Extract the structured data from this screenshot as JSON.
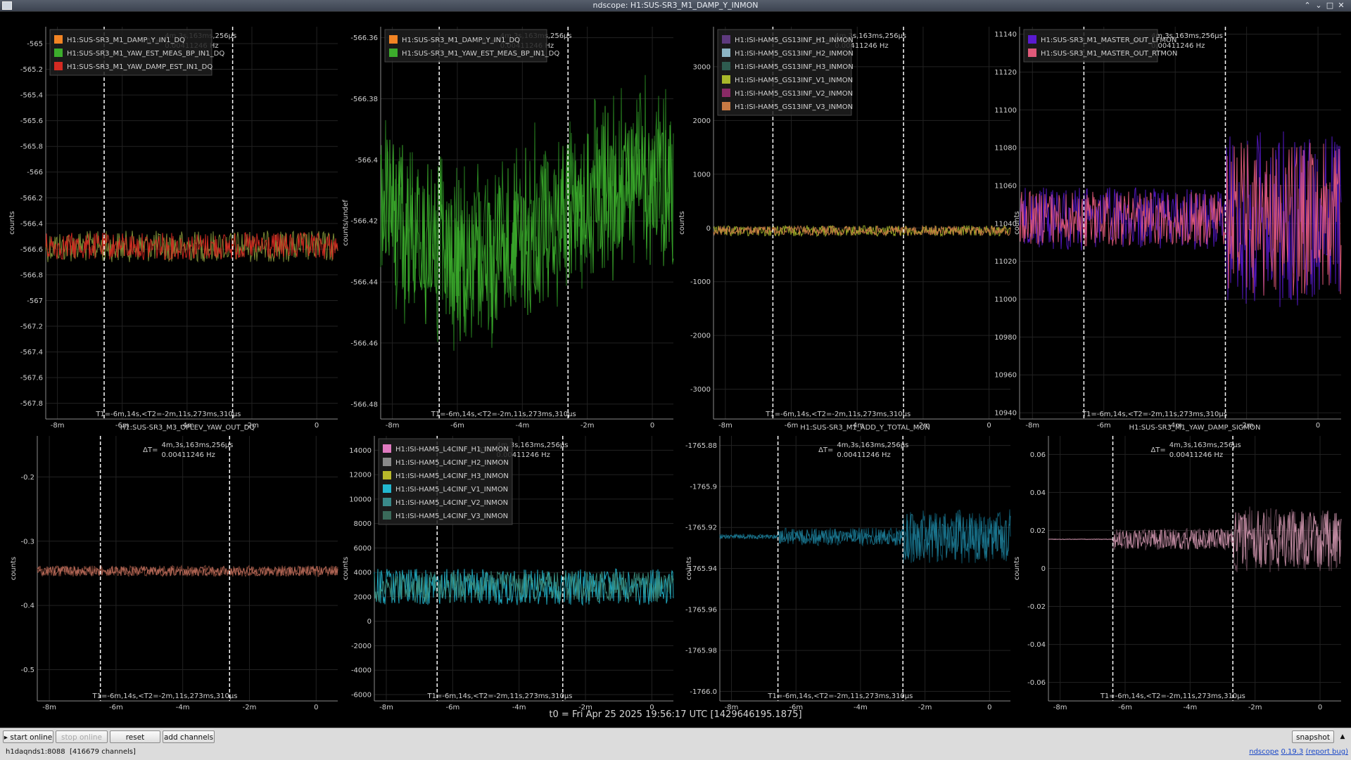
{
  "window": {
    "title": "ndscope: H1:SUS-SR3_M1_DAMP_Y_INMON"
  },
  "window_buttons": [
    "⌃",
    "⌄",
    "□",
    "✕"
  ],
  "common": {
    "x_ticks": [
      "-8m",
      "-6m",
      "-4m",
      "-2m",
      "0"
    ],
    "delta_label": "ΔT=",
    "delta_time": "4m,3s,163ms,256μs",
    "delta_freq": "0.00411246 Hz",
    "cursor_readout": "T1=-6m,14s,<T2=-2m,11s,273ms,310μs"
  },
  "plots": [
    {
      "title": "",
      "ylabel": "counts",
      "y_ticks": [
        "-565",
        "-565.2",
        "-565.4",
        "-565.6",
        "-565.8",
        "-566",
        "-566.2",
        "-566.4",
        "-566.6",
        "-566.8",
        "-567",
        "-567.2",
        "-567.4",
        "-567.6",
        "-567.8"
      ],
      "legend": [
        {
          "name": "H1:SUS-SR3_M1_DAMP_Y_IN1_DQ",
          "color": "#f28424"
        },
        {
          "name": "H1:SUS-SR3_M1_YAW_EST_MEAS_BP_IN1_DQ",
          "color": "#3cac2c"
        },
        {
          "name": "H1:SUS-SR3_M1_YAW_DAMP_EST_IN1_DQ",
          "color": "#d42a22"
        }
      ]
    },
    {
      "title": "",
      "ylabel": "counts/undef",
      "y_ticks": [
        "-566.36",
        "-566.38",
        "-566.4",
        "-566.42",
        "-566.44",
        "-566.46",
        "-566.48"
      ],
      "legend": [
        {
          "name": "H1:SUS-SR3_M1_DAMP_Y_IN1_DQ",
          "color": "#f28424"
        },
        {
          "name": "H1:SUS-SR3_M1_YAW_EST_MEAS_BP_IN1_DQ",
          "color": "#3cac2c"
        }
      ]
    },
    {
      "title": "",
      "ylabel": "counts",
      "y_ticks": [
        "3000",
        "2000",
        "1000",
        "0",
        "-1000",
        "-2000",
        "-3000"
      ],
      "legend": [
        {
          "name": "H1:ISI-HAM5_GS13INF_H1_INMON",
          "color": "#5e3a7e"
        },
        {
          "name": "H1:ISI-HAM5_GS13INF_H2_INMON",
          "color": "#8cb4c4"
        },
        {
          "name": "H1:ISI-HAM5_GS13INF_H3_INMON",
          "color": "#2e5c50"
        },
        {
          "name": "H1:ISI-HAM5_GS13INF_V1_INMON",
          "color": "#a8b82a"
        },
        {
          "name": "H1:ISI-HAM5_GS13INF_V2_INMON",
          "color": "#8a2a66"
        },
        {
          "name": "H1:ISI-HAM5_GS13INF_V3_INMON",
          "color": "#c87a44"
        }
      ]
    },
    {
      "title": "",
      "ylabel": "counts",
      "y_ticks": [
        "11140",
        "11120",
        "11100",
        "11080",
        "11060",
        "11040",
        "11020",
        "11000",
        "10980",
        "10960",
        "10940"
      ],
      "legend": [
        {
          "name": "H1:SUS-SR3_M1_MASTER_OUT_LFMON",
          "color": "#5a1ad0"
        },
        {
          "name": "H1:SUS-SR3_M1_MASTER_OUT_RTMON",
          "color": "#e05a7a"
        }
      ]
    },
    {
      "title": "H1:SUS-SR3_M3_OPLEV_YAW_OUT_DQ",
      "ylabel": "counts",
      "y_ticks": [
        "-0.2",
        "-0.3",
        "-0.4",
        "-0.5"
      ],
      "legend": []
    },
    {
      "title": "",
      "ylabel": "counts",
      "y_ticks": [
        "14000",
        "12000",
        "10000",
        "8000",
        "6000",
        "4000",
        "2000",
        "0",
        "-2000",
        "-4000",
        "-6000"
      ],
      "legend": [
        {
          "name": "H1:ISI-HAM5_L4CINF_H1_INMON",
          "color": "#e07ac0"
        },
        {
          "name": "H1:ISI-HAM5_L4CINF_H2_INMON",
          "color": "#8a8a8a"
        },
        {
          "name": "H1:ISI-HAM5_L4CINF_H3_INMON",
          "color": "#b8b82a"
        },
        {
          "name": "H1:ISI-HAM5_L4CINF_V1_INMON",
          "color": "#22b8d0"
        },
        {
          "name": "H1:ISI-HAM5_L4CINF_V2_INMON",
          "color": "#3a8a8a"
        },
        {
          "name": "H1:ISI-HAM5_L4CINF_V3_INMON",
          "color": "#3a6a5a"
        }
      ]
    },
    {
      "title": "H1:SUS-SR3_M1_ADD_Y_TOTAL_MON",
      "ylabel": "counts",
      "y_ticks": [
        "-1765.88",
        "-1765.9",
        "-1765.92",
        "-1765.94",
        "-1765.96",
        "-1765.98",
        "-1766.0"
      ],
      "legend": []
    },
    {
      "title": "H1:SUS-SR3_M1_YAW_DAMP_SIGMON",
      "ylabel": "counts",
      "y_ticks": [
        "0.06",
        "0.04",
        "0.02",
        "0",
        "-0.02",
        "-0.04",
        "-0.06"
      ],
      "legend": []
    }
  ],
  "t0": "t0 = Fri Apr 25 2025 19:56:17 UTC [1429646195.1875]",
  "toolbar": {
    "start_online": "start online",
    "stop_online": "stop online",
    "reset": "reset",
    "add_channels": "add channels",
    "snapshot": "snapshot",
    "collapse": "▲"
  },
  "status": {
    "server": "h1daqnds1:8088",
    "channels": "[416679 channels]",
    "app": "ndscope",
    "version": "0.19.3",
    "report": "(report bug)"
  },
  "colors": {
    "background": "#000000",
    "grid": "#262626",
    "cursor": "#ffffff",
    "axis_text": "#d0d0d0"
  }
}
